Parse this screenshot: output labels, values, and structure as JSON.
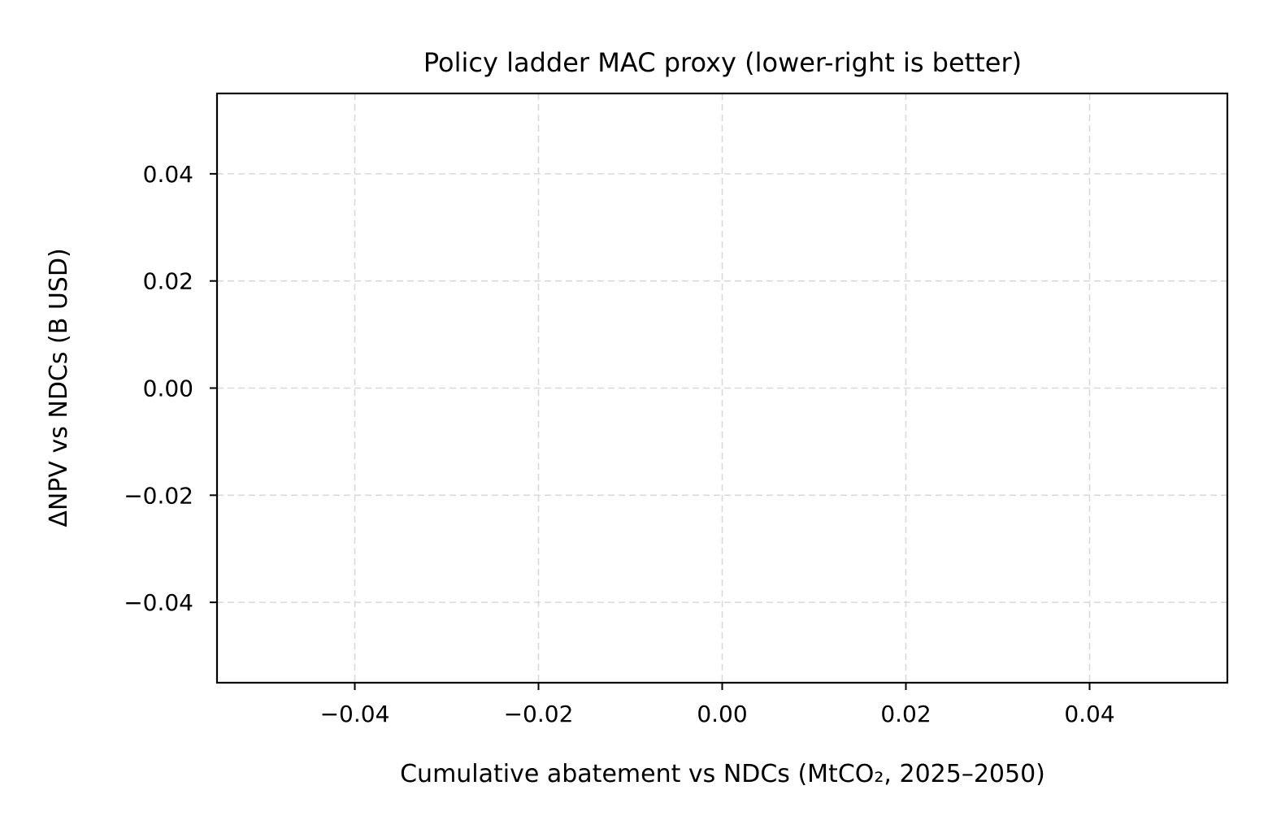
{
  "chart_data": {
    "type": "scatter",
    "title": "Policy ladder MAC proxy (lower-right is better)",
    "xlabel": "Cumulative abatement vs NDCs (MtCO₂, 2025–2050)",
    "ylabel": "ΔNPV vs NDCs (B USD)",
    "xlim": [
      -0.055,
      0.055
    ],
    "ylim": [
      -0.055,
      0.055
    ],
    "x_ticks": [
      {
        "value": -0.04,
        "label": "−0.04"
      },
      {
        "value": -0.02,
        "label": "−0.02"
      },
      {
        "value": 0.0,
        "label": "0.00"
      },
      {
        "value": 0.02,
        "label": "0.02"
      },
      {
        "value": 0.04,
        "label": "0.04"
      }
    ],
    "y_ticks": [
      {
        "value": 0.04,
        "label": "0.04"
      },
      {
        "value": 0.02,
        "label": "0.02"
      },
      {
        "value": 0.0,
        "label": "0.00"
      },
      {
        "value": -0.02,
        "label": "−0.02"
      },
      {
        "value": -0.04,
        "label": "−0.04"
      }
    ],
    "grid": true,
    "series": []
  }
}
